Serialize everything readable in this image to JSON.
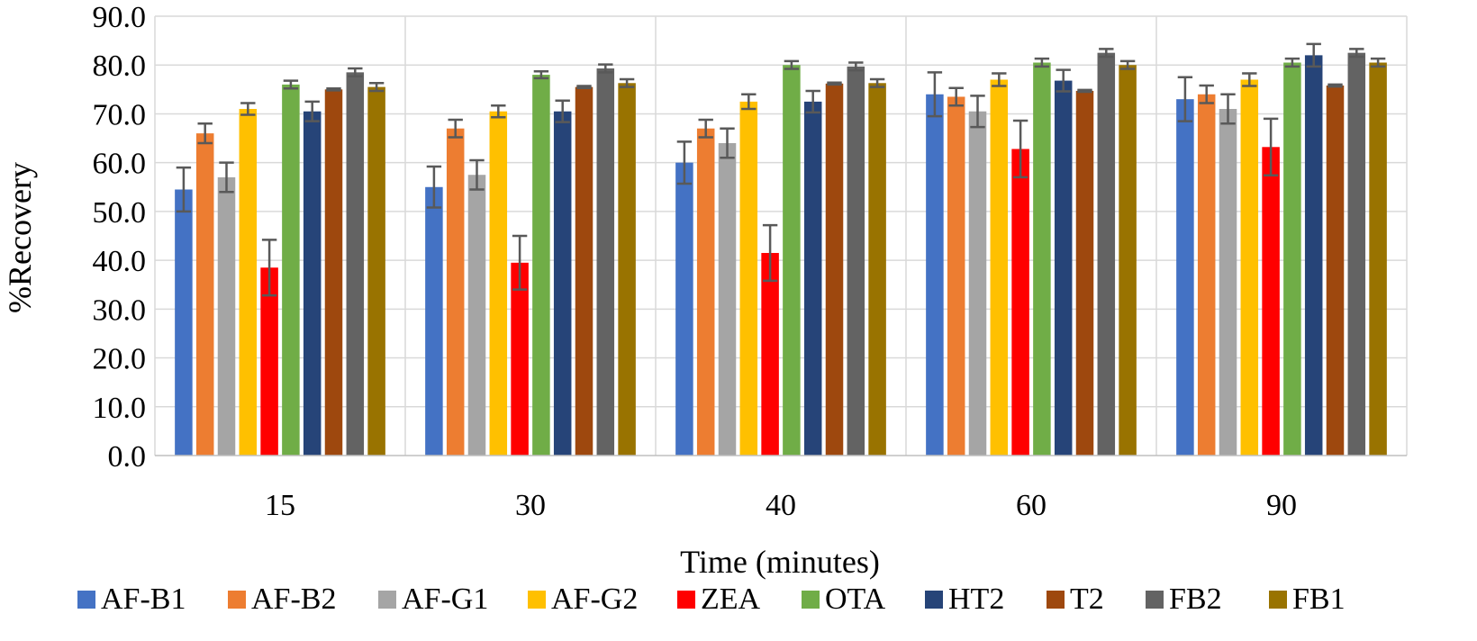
{
  "chart_data": {
    "type": "bar",
    "title": "",
    "xlabel": "Time (minutes)",
    "ylabel": "%Recovery",
    "ylim": [
      0,
      90
    ],
    "ytick_step": 10,
    "ytick_labels": [
      "0.0",
      "10.0",
      "20.0",
      "30.0",
      "40.0",
      "50.0",
      "60.0",
      "70.0",
      "80.0",
      "90.0"
    ],
    "grid": true,
    "legend_position": "bottom",
    "categories": [
      "15",
      "30",
      "40",
      "60",
      "90"
    ],
    "series": [
      {
        "name": "AF-B1",
        "color": "#4472c4",
        "values": [
          54.5,
          55.0,
          60.0,
          74.0,
          73.0
        ],
        "errors": [
          4.5,
          4.2,
          4.3,
          4.5,
          4.5
        ]
      },
      {
        "name": "AF-B2",
        "color": "#ed7d31",
        "values": [
          66.0,
          67.0,
          67.0,
          73.5,
          74.0
        ],
        "errors": [
          2.0,
          1.8,
          1.8,
          1.8,
          1.8
        ]
      },
      {
        "name": "AF-G1",
        "color": "#a5a5a5",
        "values": [
          57.0,
          57.5,
          64.0,
          70.5,
          71.0
        ],
        "errors": [
          3.0,
          3.0,
          3.0,
          3.2,
          3.0
        ]
      },
      {
        "name": "AF-G2",
        "color": "#ffc000",
        "values": [
          71.0,
          70.5,
          72.5,
          77.0,
          77.0
        ],
        "errors": [
          1.2,
          1.2,
          1.5,
          1.3,
          1.3
        ]
      },
      {
        "name": "ZEA",
        "color": "#ff0000",
        "values": [
          38.5,
          39.5,
          41.5,
          62.8,
          63.2
        ],
        "errors": [
          5.7,
          5.5,
          5.7,
          5.8,
          5.8
        ]
      },
      {
        "name": "OTA",
        "color": "#70ad47",
        "values": [
          76.0,
          78.0,
          80.0,
          80.5,
          80.5
        ],
        "errors": [
          0.8,
          0.7,
          0.8,
          0.8,
          0.8
        ]
      },
      {
        "name": "HT2",
        "color": "#264478",
        "values": [
          70.5,
          70.5,
          72.5,
          76.8,
          82.0
        ],
        "errors": [
          2.0,
          2.2,
          2.2,
          2.2,
          2.3
        ]
      },
      {
        "name": "T2",
        "color": "#9e480e",
        "values": [
          75.0,
          75.5,
          76.2,
          74.7,
          75.8
        ],
        "errors": [
          0.2,
          0.2,
          0.2,
          0.2,
          0.2
        ]
      },
      {
        "name": "FB2",
        "color": "#636363",
        "values": [
          78.5,
          79.3,
          79.7,
          82.5,
          82.5
        ],
        "errors": [
          0.8,
          0.8,
          0.8,
          0.8,
          0.8
        ]
      },
      {
        "name": "FB1",
        "color": "#997300",
        "values": [
          75.5,
          76.3,
          76.3,
          80.0,
          80.5
        ],
        "errors": [
          0.8,
          0.8,
          0.8,
          0.8,
          0.8
        ]
      }
    ]
  }
}
